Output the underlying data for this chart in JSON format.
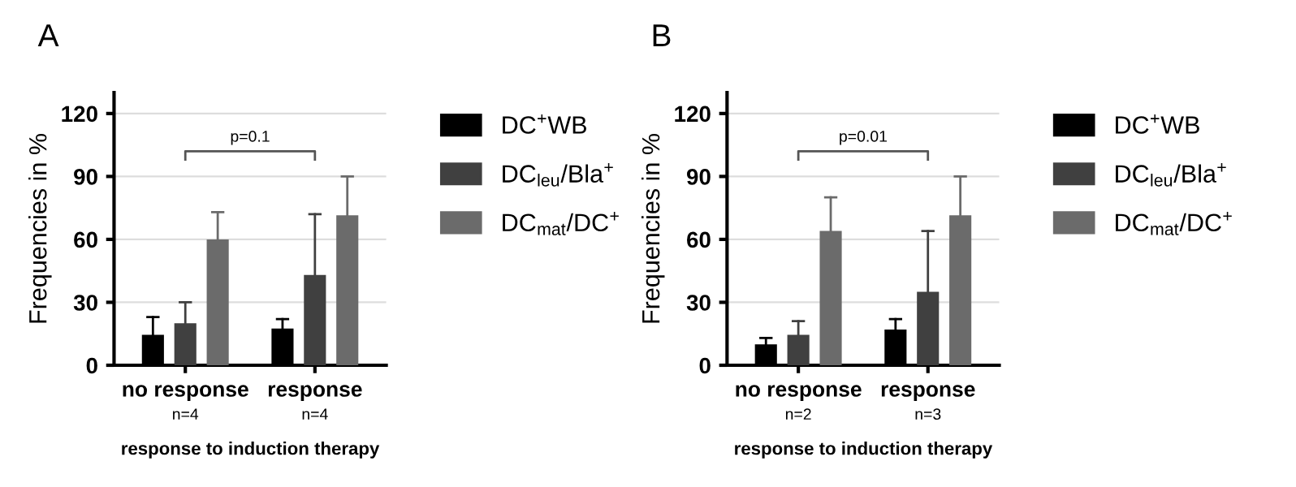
{
  "chart_data": [
    {
      "type": "bar",
      "title": "A",
      "ylabel": "Frequencies in %",
      "xlabel": "response to induction therapy",
      "categories": [
        "no response",
        "response"
      ],
      "series": [
        {
          "name": "DC$^{+}$WB",
          "color": "#000000",
          "values": [
            14.5,
            17.5
          ],
          "errors": [
            [
              14.5,
              23
            ],
            [
              17.5,
              22
            ]
          ]
        },
        {
          "name": "DC$_{leu}$/Bla$^{+}$",
          "color": "#404040",
          "values": [
            20,
            43
          ],
          "errors": [
            [
              20,
              30
            ],
            [
              43,
              72
            ]
          ]
        },
        {
          "name": "DC$_{mat}$/DC$^{+}$",
          "color": "#6b6b6b",
          "values": [
            60,
            71.5
          ],
          "errors": [
            [
              60,
              73
            ],
            [
              71.5,
              90
            ]
          ]
        }
      ],
      "ylim": [
        0,
        130
      ],
      "yticks": [
        0,
        30,
        60,
        90,
        120
      ],
      "grid": "y",
      "legend": "right",
      "annotations": [
        "p=0.1",
        "n=4",
        "n=4"
      ]
    },
    {
      "type": "bar",
      "title": "B",
      "ylabel": "Frequencies in %",
      "xlabel": "response to induction therapy",
      "categories": [
        "no response",
        "response"
      ],
      "series": [
        {
          "name": "DC$^{+}$WB",
          "color": "#000000",
          "values": [
            10,
            17
          ],
          "errors": [
            [
              10,
              13
            ],
            [
              17,
              22
            ]
          ]
        },
        {
          "name": "DC$_{leu}$/Bla$^{+}$",
          "color": "#404040",
          "values": [
            14.5,
            35
          ],
          "errors": [
            [
              14.5,
              21
            ],
            [
              35,
              64
            ]
          ]
        },
        {
          "name": "DC$_{mat}$/DC$^{+}$",
          "color": "#6b6b6b",
          "values": [
            64,
            71.5
          ],
          "errors": [
            [
              64,
              80
            ],
            [
              71.5,
              90
            ]
          ]
        }
      ],
      "ylim": [
        0,
        130
      ],
      "yticks": [
        0,
        30,
        60,
        90,
        120
      ],
      "grid": "y",
      "legend": "right",
      "annotations": [
        "p=0.01",
        "n=2",
        "n=3"
      ]
    }
  ]
}
